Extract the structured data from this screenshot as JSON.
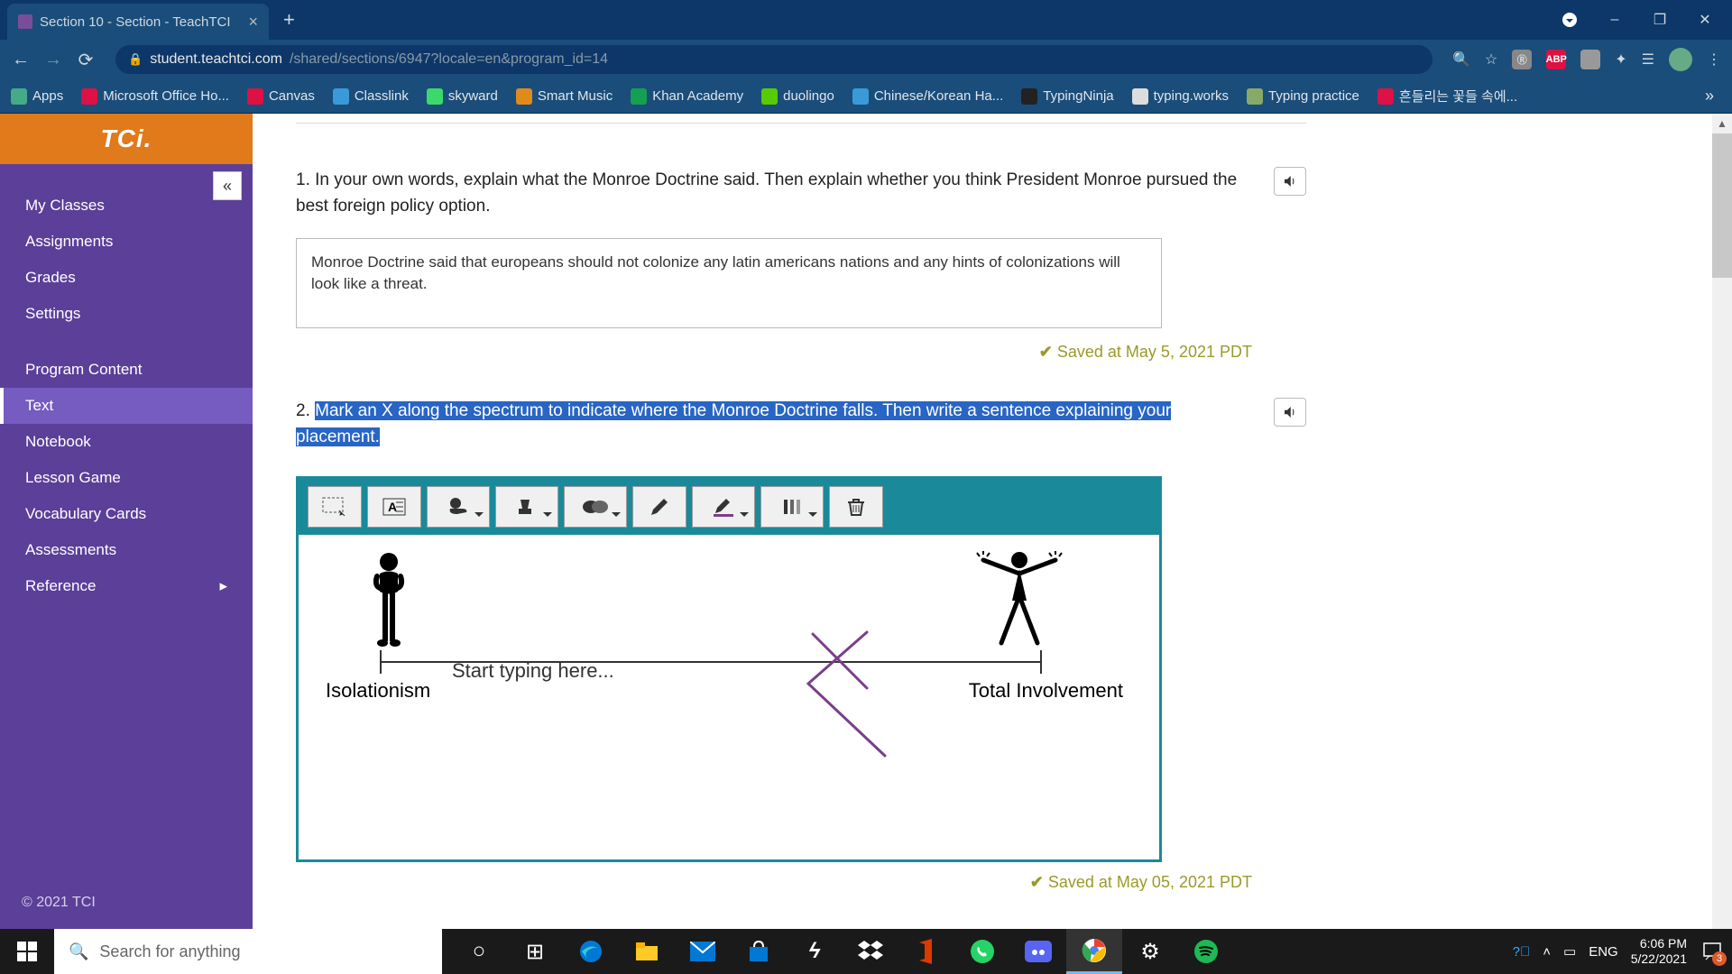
{
  "browser": {
    "tab_title": "Section 10 - Section - TeachTCI",
    "url_host": "student.teachtci.com",
    "url_path": "/shared/sections/6947?locale=en&program_id=14",
    "bookmarks": [
      {
        "label": "Apps",
        "color": "#4a8"
      },
      {
        "label": "Microsoft Office Ho...",
        "color": "#d14"
      },
      {
        "label": "Canvas",
        "color": "#d14"
      },
      {
        "label": "Classlink",
        "color": "#3a9ad9"
      },
      {
        "label": "skyward",
        "color": "#3ad96a"
      },
      {
        "label": "Smart Music",
        "color": "#e08a1a"
      },
      {
        "label": "Khan Academy",
        "color": "#14a050"
      },
      {
        "label": "duolingo",
        "color": "#58cc02"
      },
      {
        "label": "Chinese/Korean Ha...",
        "color": "#3a9ad9"
      },
      {
        "label": "TypingNinja",
        "color": "#222"
      },
      {
        "label": "typing.works",
        "color": "#ddd"
      },
      {
        "label": "Typing practice",
        "color": "#8a6"
      },
      {
        "label": "흔들리는 꽃들 속에...",
        "color": "#d14"
      }
    ]
  },
  "sidebar": {
    "logo": "TCi.",
    "items_top": [
      "My Classes",
      "Assignments",
      "Grades",
      "Settings"
    ],
    "items_bottom": [
      "Program Content",
      "Text",
      "Notebook",
      "Lesson Game",
      "Vocabulary Cards",
      "Assessments",
      "Reference"
    ],
    "active": "Text",
    "copyright": "© 2021 TCI"
  },
  "questions": {
    "q1": {
      "number": "1.",
      "text": "In your own words, explain what the Monroe Doctrine said. Then explain whether you think President Monroe pursued the best foreign policy option.",
      "answer": "Monroe Doctrine said that europeans should not colonize any latin americans nations and any hints of colonizations will look like a threat.",
      "saved": "Saved at May 5, 2021 PDT"
    },
    "q2": {
      "number": "2.",
      "text": "Mark an X along the spectrum to indicate where the Monroe Doctrine falls. Then write a sentence explaining your placement.",
      "saved": "Saved at May 05, 2021 PDT"
    }
  },
  "spectrum": {
    "left_label": "Isolationism",
    "right_label": "Total Involvement",
    "placeholder": "Start typing here...",
    "toolbar_bg": "#1a8a9a",
    "x_color": "#7a3f8a"
  },
  "taskbar": {
    "search_placeholder": "Search for anything",
    "lang": "ENG",
    "time": "6:06 PM",
    "date": "5/22/2021",
    "notif_count": "3"
  }
}
